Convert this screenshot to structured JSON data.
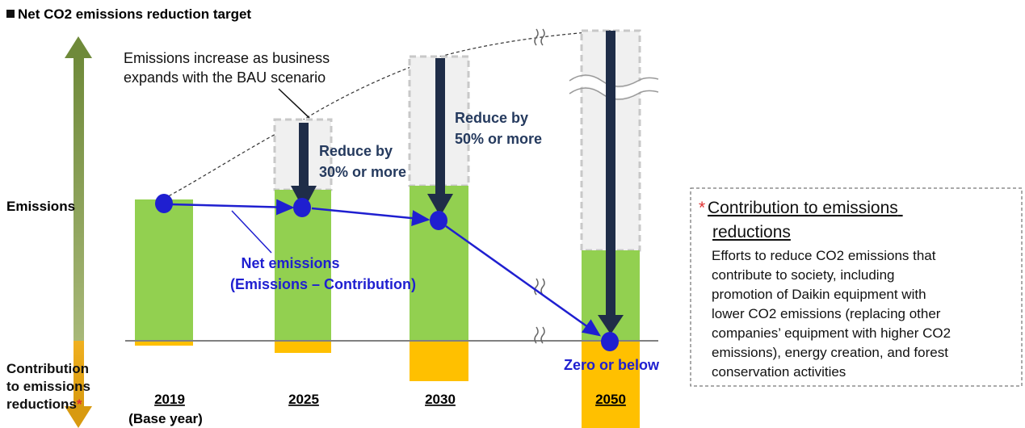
{
  "header": {
    "title": "Net CO2 emissions reduction target"
  },
  "axis": {
    "emissions": "Emissions",
    "contribution_lines": [
      "Contribution",
      "to emissions",
      "reductions"
    ],
    "asterisk": "*"
  },
  "annotations": {
    "bau_lines": [
      "Emissions increase as business",
      "expands with the BAU scenario"
    ],
    "reduce_2025": [
      "Reduce by",
      "30% or more"
    ],
    "reduce_2030": [
      "Reduce by",
      "50% or more"
    ],
    "net_emissions": [
      "Net emissions",
      "(Emissions – Contribution)"
    ],
    "zero": "Zero or below"
  },
  "years": [
    "2019",
    "2025",
    "2030",
    "2050"
  ],
  "base_year": "(Base year)",
  "note": {
    "asterisk": "*",
    "title_lines": [
      "Contribution to emissions",
      "reductions"
    ],
    "body_lines": [
      "Efforts to reduce CO2 emissions that",
      "contribute to society, including",
      "promotion of Daikin equipment with",
      "lower CO2 emissions (replacing other",
      "companies’ equipment with higher CO2",
      "emissions), energy creation, and forest",
      "conservation activities"
    ]
  }
}
